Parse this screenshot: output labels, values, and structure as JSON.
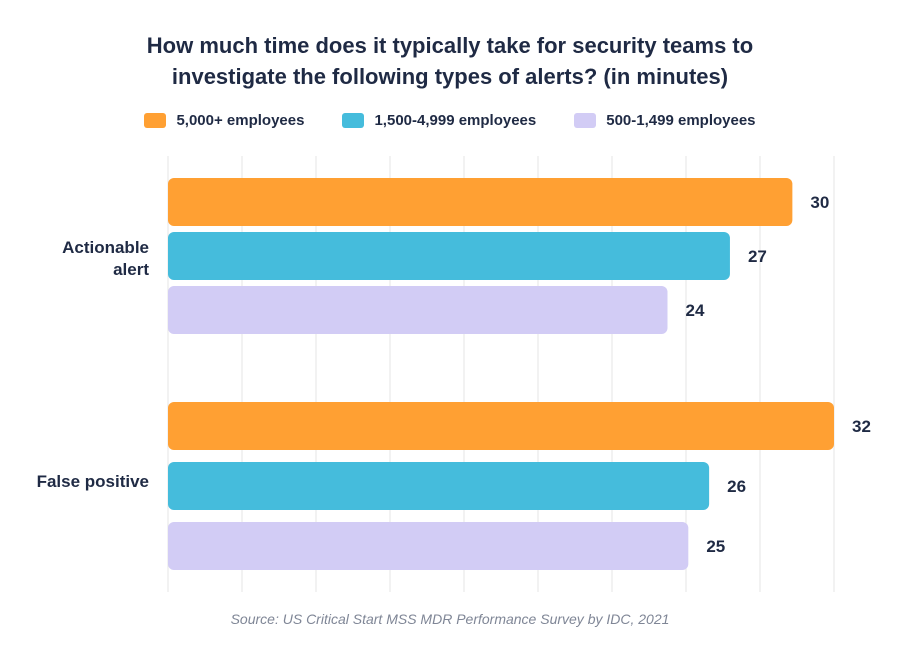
{
  "chart_data": {
    "type": "bar",
    "orientation": "horizontal",
    "title": [
      "How much time does it typically take for security teams to",
      "investigate the following types of alerts? (in minutes)"
    ],
    "categories": [
      "Actionable alert",
      "False positive"
    ],
    "series": [
      {
        "name": "5,000+ employees",
        "color": "#ffa033",
        "values": [
          30,
          32
        ]
      },
      {
        "name": "1,500-4,999 employees",
        "color": "#45bcdc",
        "values": [
          27,
          26
        ]
      },
      {
        "name": "500-1,499 employees",
        "color": "#d2ccf5",
        "values": [
          24,
          25
        ]
      }
    ],
    "xlim": [
      0,
      32
    ],
    "grid": true,
    "legend": "top",
    "data_labels": true,
    "source": "Source: US Critical Start MSS MDR Performance Survey by IDC, 2021"
  }
}
